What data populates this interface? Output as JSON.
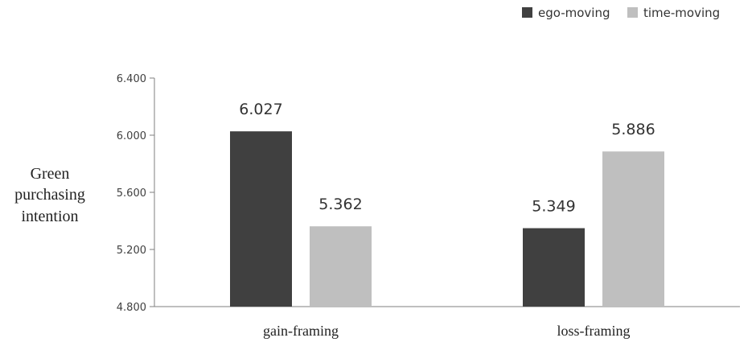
{
  "chart_data": {
    "type": "bar",
    "categories": [
      "gain-framing",
      "loss-framing"
    ],
    "series": [
      {
        "name": "ego-moving",
        "values": [
          6.027,
          5.349
        ],
        "color": "#404040"
      },
      {
        "name": "time-moving",
        "values": [
          5.362,
          5.886
        ],
        "color": "#bfbfbf"
      }
    ],
    "data_labels": [
      [
        "6.027",
        "5.349"
      ],
      [
        "5.362",
        "5.886"
      ]
    ],
    "ylabel_lines": [
      "Green",
      "purchasing",
      "intention"
    ],
    "xlabel": "",
    "ylim": [
      4.8,
      6.4
    ],
    "yticks": [
      "4.800",
      "5.200",
      "5.600",
      "6.000",
      "6.400"
    ],
    "grid": false,
    "legend_position": "top-right"
  }
}
